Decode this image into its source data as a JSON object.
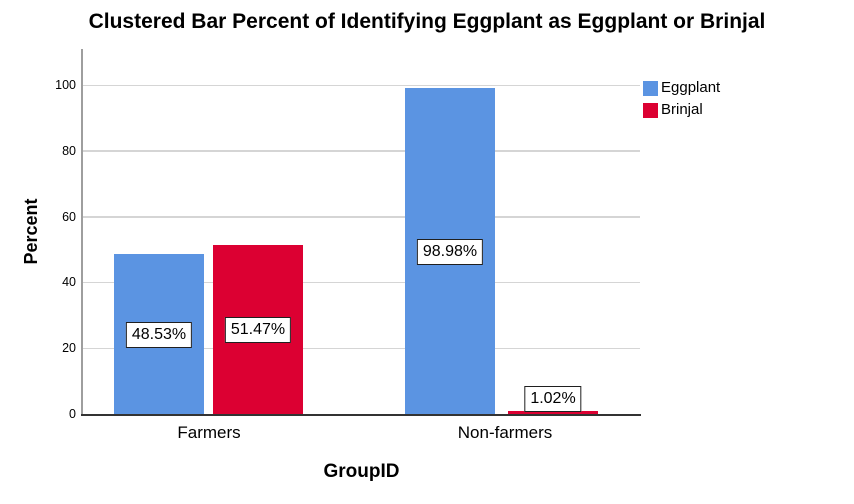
{
  "chart_data": {
    "type": "bar",
    "title": "Clustered Bar Percent of Identifying Eggplant as Eggplant or Brinjal",
    "xlabel": "GroupID",
    "ylabel": "Percent",
    "categories": [
      "Farmers",
      "Non-farmers"
    ],
    "series": [
      {
        "name": "Eggplant",
        "color": "#5B94E2",
        "values": [
          48.53,
          98.98
        ],
        "data_labels": [
          "48.53%",
          "98.98%"
        ]
      },
      {
        "name": "Brinjal",
        "color": "#DC0032",
        "values": [
          51.47,
          1.02
        ],
        "data_labels": [
          "51.47%",
          "1.02%"
        ]
      }
    ],
    "y_ticks": [
      0,
      20,
      40,
      60,
      80,
      100
    ],
    "ylim": [
      0,
      110
    ],
    "grid": true,
    "legend_position": "top-right",
    "colors": {
      "gridline": "#D5D5D5",
      "y_axis_line": "#9E9E9E",
      "x_axis_line": "#333333",
      "label_box_border": "#1F1F1F",
      "background": "#FFFFFF"
    }
  }
}
